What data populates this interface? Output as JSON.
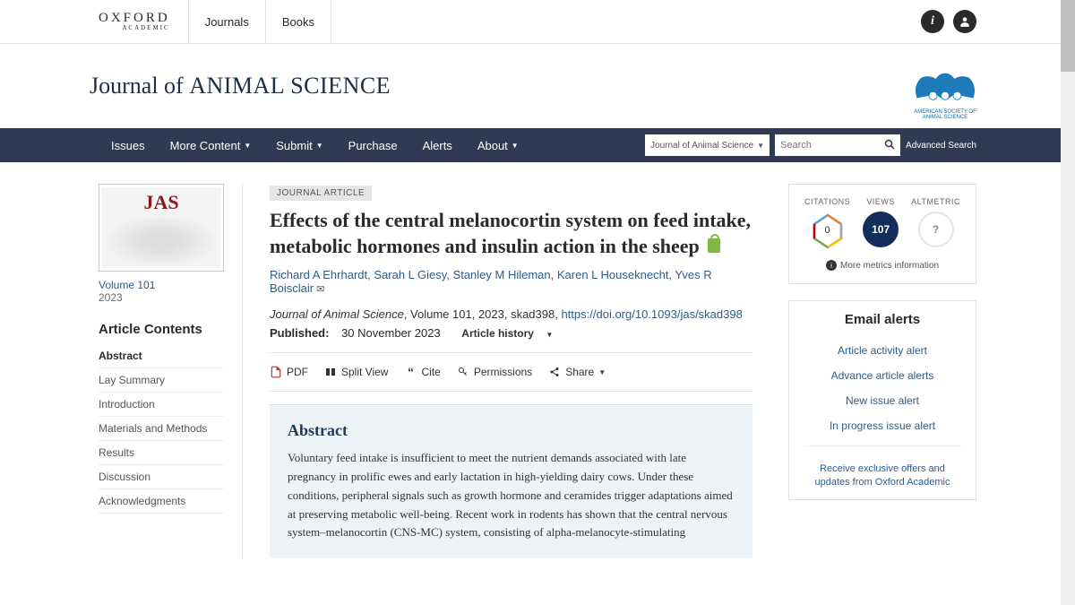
{
  "topbar": {
    "brand": "OXFORD",
    "brand_sub": "ACADEMIC",
    "links": [
      "Journals",
      "Books"
    ]
  },
  "journal_name_pre": "Journal of ",
  "journal_name_caps": "ANIMAL SCIENCE",
  "society_caption": "AMERICAN SOCIETY OF ANIMAL SCIENCE",
  "nav": {
    "items": [
      {
        "label": "Issues",
        "dropdown": false
      },
      {
        "label": "More Content",
        "dropdown": true
      },
      {
        "label": "Submit",
        "dropdown": true
      },
      {
        "label": "Purchase",
        "dropdown": false
      },
      {
        "label": "Alerts",
        "dropdown": false
      },
      {
        "label": "About",
        "dropdown": true
      }
    ],
    "search_scope": "Journal of Animal Science",
    "search_placeholder": "Search",
    "advanced": "Advanced Search"
  },
  "cover": {
    "jas": "JAS",
    "volume_link": "Volume 101",
    "year": "2023"
  },
  "toc": {
    "heading": "Article Contents",
    "items": [
      "Abstract",
      "Lay Summary",
      "Introduction",
      "Materials and Methods",
      "Results",
      "Discussion",
      "Acknowledgments"
    ]
  },
  "article": {
    "tag": "JOURNAL ARTICLE",
    "title": "Effects of the central melanocortin system on feed intake, metabolic hormones and insulin action in the sheep",
    "authors": [
      "Richard A Ehrhardt",
      "Sarah L Giesy",
      "Stanley M Hileman",
      "Karen L Houseknecht",
      "Yves R Boisclair"
    ],
    "citation_journal": "Journal of Animal Science",
    "citation_rest": ", Volume 101, 2023, skad398, ",
    "doi": "https://doi.org/10.1093/jas/skad398",
    "published_label": "Published:",
    "published_date": "30 November 2023",
    "history_label": "Article history"
  },
  "tools": {
    "pdf": "PDF",
    "split": "Split View",
    "cite": "Cite",
    "permissions": "Permissions",
    "share": "Share"
  },
  "abstract": {
    "heading": "Abstract",
    "text": "Voluntary feed intake is insufficient to meet the nutrient demands associated with late pregnancy in prolific ewes and early lactation in high-yielding dairy cows. Under these conditions, peripheral signals such as growth hormone and ceramides trigger adaptations aimed at preserving metabolic well-being. Recent work in rodents has shown that the central nervous system–melanocortin (CNS-MC) system, consisting of alpha-melanocyte-stimulating"
  },
  "metrics": {
    "citations": {
      "label": "CITATIONS",
      "value": "0"
    },
    "views": {
      "label": "VIEWS",
      "value": "107"
    },
    "altmetric": {
      "label": "ALTMETRIC",
      "value": "?"
    },
    "more": "More metrics information"
  },
  "alerts": {
    "heading": "Email alerts",
    "links": [
      "Article activity alert",
      "Advance article alerts",
      "New issue alert",
      "In progress issue alert"
    ],
    "offers": "Receive exclusive offers and updates from Oxford Academic"
  }
}
